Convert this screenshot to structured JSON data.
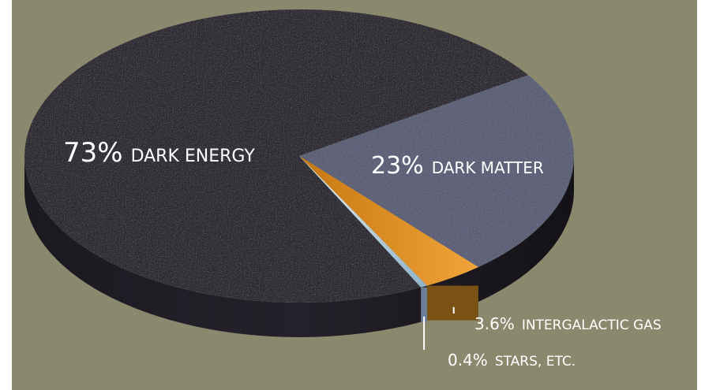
{
  "chart_data": {
    "type": "pie",
    "slices": [
      {
        "pct": "73%",
        "name": "DARK ENERGY",
        "value": 73
      },
      {
        "pct": "23%",
        "name": "DARK MATTER",
        "value": 23
      },
      {
        "pct": "3.6%",
        "name": "INTERGALACTIC GAS",
        "value": 3.6
      },
      {
        "pct": "0.4%",
        "name": "STARS, ETC.",
        "value": 0.4
      }
    ]
  },
  "colors": {
    "background": "#8a886d",
    "dark_energy": "#2d2a33",
    "dark_matter": "#5c6077",
    "intergalactic_gas": "#e08c1a",
    "stars": "#cfe4ee"
  }
}
